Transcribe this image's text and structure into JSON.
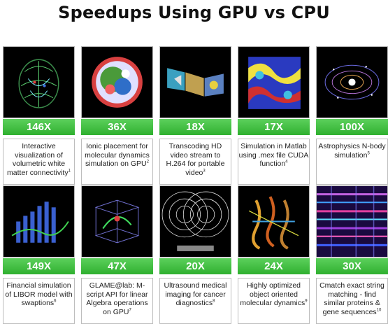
{
  "title": "Speedups Using GPU vs CPU",
  "cards": [
    {
      "speedup": "146X",
      "desc": "Interactive visualization of volumetric white matter connectivity",
      "ref": "1",
      "icon": "brain-tract-image"
    },
    {
      "speedup": "36X",
      "desc": "Ionic placement for molecular dynamics simulation on GPU",
      "ref": "2",
      "icon": "molecule-sphere-image"
    },
    {
      "speedup": "18X",
      "desc": "Transcoding HD video stream to H.264 for portable video",
      "ref": "3",
      "icon": "video-frames-image"
    },
    {
      "speedup": "17X",
      "desc": "Simulation in Matlab using .mex file CUDA function",
      "ref": "4",
      "icon": "fluid-simulation-image"
    },
    {
      "speedup": "100X",
      "desc": "Astrophysics N-body simulation",
      "ref": "5",
      "icon": "nbody-galaxy-image"
    },
    {
      "speedup": "149X",
      "desc": "Financial simulation of LIBOR model with swaptions",
      "ref": "6",
      "icon": "financial-chart-image"
    },
    {
      "speedup": "47X",
      "desc": "GLAME@lab: M-script API for linear Algebra operations on GPU",
      "ref": "7",
      "icon": "linear-algebra-image"
    },
    {
      "speedup": "20X",
      "desc": "Ultrasound medical imaging for cancer diagnostics",
      "ref": "8",
      "icon": "ultrasound-rings-image"
    },
    {
      "speedup": "24X",
      "desc": "Highly optimized object oriented molecular dynamics",
      "ref": "9",
      "icon": "protein-ribbon-image"
    },
    {
      "speedup": "30X",
      "desc": "Cmatch exact string matching - find similar proteins & gene sequences",
      "ref": "10",
      "icon": "sequence-matrix-image"
    }
  ]
}
